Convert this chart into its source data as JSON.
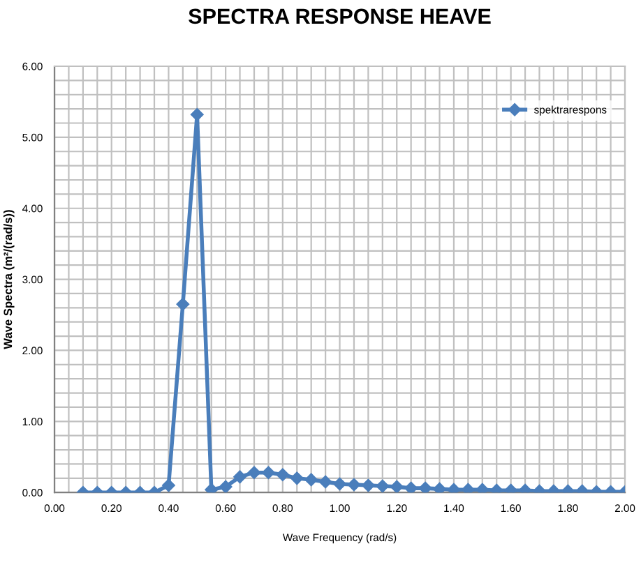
{
  "chart_data": {
    "type": "line",
    "title": "SPECTRA RESPONSE HEAVE",
    "xlabel": "Wave Frequency (rad/s)",
    "ylabel": "Wave Spectra (m²/(rad/s))",
    "series": [
      {
        "name": "spektrarespons",
        "color": "#4a7ebb",
        "x": [
          0.1,
          0.15,
          0.2,
          0.25,
          0.3,
          0.35,
          0.4,
          0.45,
          0.5,
          0.55,
          0.6,
          0.65,
          0.7,
          0.75,
          0.8,
          0.85,
          0.9,
          0.95,
          1.0,
          1.05,
          1.1,
          1.15,
          1.2,
          1.25,
          1.3,
          1.35,
          1.4,
          1.45,
          1.5,
          1.55,
          1.6,
          1.65,
          1.7,
          1.75,
          1.8,
          1.85,
          1.9,
          1.95,
          2.0
        ],
        "values": [
          0,
          0,
          0,
          0,
          0,
          0,
          0.1,
          2.65,
          5.32,
          0.04,
          0.08,
          0.22,
          0.28,
          0.28,
          0.25,
          0.2,
          0.18,
          0.15,
          0.12,
          0.11,
          0.1,
          0.09,
          0.08,
          0.06,
          0.06,
          0.05,
          0.04,
          0.04,
          0.04,
          0.03,
          0.03,
          0.03,
          0.02,
          0.02,
          0.02,
          0.02,
          0.01,
          0.01,
          0.01
        ]
      }
    ],
    "xlim": [
      0,
      2
    ],
    "ylim": [
      0,
      6
    ],
    "xticks": [
      {
        "value": 0,
        "label": "0.00"
      },
      {
        "value": 0.05,
        "label": null
      },
      {
        "value": 0.1,
        "label": null
      },
      {
        "value": 0.15,
        "label": null
      },
      {
        "value": 0.2,
        "label": "0.20"
      },
      {
        "value": 0.25,
        "label": null
      },
      {
        "value": 0.3,
        "label": null
      },
      {
        "value": 0.35,
        "label": null
      },
      {
        "value": 0.4,
        "label": "0.40"
      },
      {
        "value": 0.45,
        "label": null
      },
      {
        "value": 0.5,
        "label": null
      },
      {
        "value": 0.55,
        "label": null
      },
      {
        "value": 0.6,
        "label": "0.60"
      },
      {
        "value": 0.65,
        "label": null
      },
      {
        "value": 0.7,
        "label": null
      },
      {
        "value": 0.75,
        "label": null
      },
      {
        "value": 0.8,
        "label": "0.80"
      },
      {
        "value": 0.85,
        "label": null
      },
      {
        "value": 0.9,
        "label": null
      },
      {
        "value": 0.95,
        "label": null
      },
      {
        "value": 1.0,
        "label": "1.00"
      },
      {
        "value": 1.05,
        "label": null
      },
      {
        "value": 1.1,
        "label": null
      },
      {
        "value": 1.15,
        "label": null
      },
      {
        "value": 1.2,
        "label": "1.20"
      },
      {
        "value": 1.25,
        "label": null
      },
      {
        "value": 1.3,
        "label": null
      },
      {
        "value": 1.35,
        "label": null
      },
      {
        "value": 1.4,
        "label": "1.40"
      },
      {
        "value": 1.45,
        "label": null
      },
      {
        "value": 1.5,
        "label": null
      },
      {
        "value": 1.55,
        "label": null
      },
      {
        "value": 1.6,
        "label": "1.60"
      },
      {
        "value": 1.65,
        "label": null
      },
      {
        "value": 1.7,
        "label": null
      },
      {
        "value": 1.75,
        "label": null
      },
      {
        "value": 1.8,
        "label": "1.80"
      },
      {
        "value": 1.85,
        "label": null
      },
      {
        "value": 1.9,
        "label": null
      },
      {
        "value": 1.95,
        "label": null
      },
      {
        "value": 2.0,
        "label": "2.00"
      }
    ],
    "yticks": [
      {
        "value": 0,
        "label": "0.00"
      },
      {
        "value": 0.2,
        "label": null
      },
      {
        "value": 0.4,
        "label": null
      },
      {
        "value": 0.6,
        "label": null
      },
      {
        "value": 0.8,
        "label": null
      },
      {
        "value": 1,
        "label": "1.00"
      },
      {
        "value": 1.2,
        "label": null
      },
      {
        "value": 1.4,
        "label": null
      },
      {
        "value": 1.6,
        "label": null
      },
      {
        "value": 1.8,
        "label": null
      },
      {
        "value": 2,
        "label": "2.00"
      },
      {
        "value": 2.2,
        "label": null
      },
      {
        "value": 2.4,
        "label": null
      },
      {
        "value": 2.6,
        "label": null
      },
      {
        "value": 2.8,
        "label": null
      },
      {
        "value": 3,
        "label": "3.00"
      },
      {
        "value": 3.2,
        "label": null
      },
      {
        "value": 3.4,
        "label": null
      },
      {
        "value": 3.6,
        "label": null
      },
      {
        "value": 3.8,
        "label": null
      },
      {
        "value": 4,
        "label": "4.00"
      },
      {
        "value": 4.2,
        "label": null
      },
      {
        "value": 4.4,
        "label": null
      },
      {
        "value": 4.6,
        "label": null
      },
      {
        "value": 4.8,
        "label": null
      },
      {
        "value": 5,
        "label": "5.00"
      },
      {
        "value": 5.2,
        "label": null
      },
      {
        "value": 5.4,
        "label": null
      },
      {
        "value": 5.6,
        "label": null
      },
      {
        "value": 5.8,
        "label": null
      },
      {
        "value": 6,
        "label": "6.00"
      }
    ],
    "grid": true,
    "legend": "top right",
    "marker": "diamond",
    "line_style": "solid"
  }
}
